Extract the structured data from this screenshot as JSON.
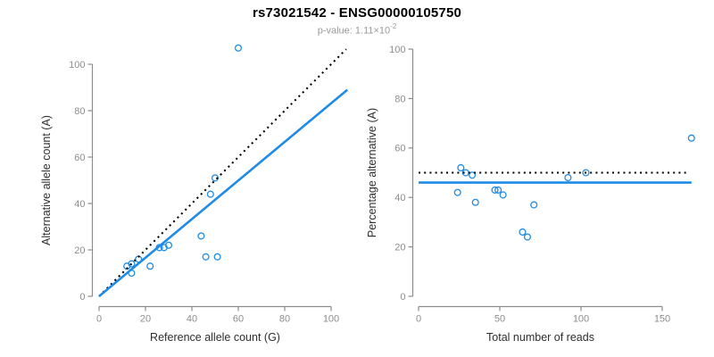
{
  "header": {
    "title": "rs73021542 - ENSG00000105750",
    "pvalue_prefix": "p-value: 1.11×10",
    "pvalue_exponent": "-2"
  },
  "colors": {
    "points": "#1E8BE6",
    "fit_line": "#1E8BE6",
    "reference_line": "#000000",
    "axis": "#8c8c8c",
    "tick_labels": "#8c8c8c",
    "axis_titles": "#2e2e2e"
  },
  "chart_data": [
    {
      "type": "scatter",
      "name": "allele-counts-plot",
      "xlabel": "Reference allele count (G)",
      "ylabel": "Alternative allele count (A)",
      "xlim": [
        0,
        107
      ],
      "ylim": [
        0,
        108
      ],
      "xticks": [
        0,
        20,
        40,
        60,
        80,
        100
      ],
      "yticks": [
        0,
        20,
        40,
        60,
        80,
        100
      ],
      "grid": false,
      "points": [
        [
          60,
          107
        ],
        [
          50,
          51
        ],
        [
          48,
          44
        ],
        [
          44,
          26
        ],
        [
          46,
          17
        ],
        [
          51,
          17
        ],
        [
          26,
          21
        ],
        [
          28,
          21
        ],
        [
          30,
          22
        ],
        [
          22,
          13
        ],
        [
          17,
          16
        ],
        [
          14,
          14
        ],
        [
          12,
          13
        ],
        [
          14,
          10
        ]
      ],
      "lines": [
        {
          "name": "identity-line",
          "style": "dotted",
          "color": "#000000",
          "x1": 0,
          "y1": 0,
          "x2": 106.5,
          "y2": 106.5
        },
        {
          "name": "fit-line",
          "style": "solid",
          "color": "#1E8BE6",
          "x1": 0,
          "y1": 0,
          "x2": 107,
          "y2": 89
        }
      ]
    },
    {
      "type": "scatter",
      "name": "percentage-alternative-plot",
      "xlabel": "Total number of reads",
      "ylabel": "Percentage alternative (A)",
      "xlim": [
        0,
        170
      ],
      "ylim": [
        0,
        103
      ],
      "xticks": [
        0,
        50,
        100,
        150
      ],
      "yticks": [
        0,
        20,
        40,
        60,
        80,
        100
      ],
      "grid": false,
      "points": [
        [
          168,
          64
        ],
        [
          103,
          50
        ],
        [
          92,
          48
        ],
        [
          71,
          37
        ],
        [
          64,
          26
        ],
        [
          67,
          24
        ],
        [
          47,
          43
        ],
        [
          49,
          43
        ],
        [
          52,
          41
        ],
        [
          35,
          38
        ],
        [
          33,
          49
        ],
        [
          29,
          50
        ],
        [
          26,
          52
        ],
        [
          24,
          42
        ]
      ],
      "lines": [
        {
          "name": "expected-50pct-line",
          "style": "dotted",
          "color": "#000000",
          "x1": 0,
          "y1": 50,
          "x2": 166,
          "y2": 50
        },
        {
          "name": "fit-line",
          "style": "solid",
          "color": "#1E8BE6",
          "x1": 0,
          "y1": 46,
          "x2": 168,
          "y2": 46
        }
      ]
    }
  ]
}
